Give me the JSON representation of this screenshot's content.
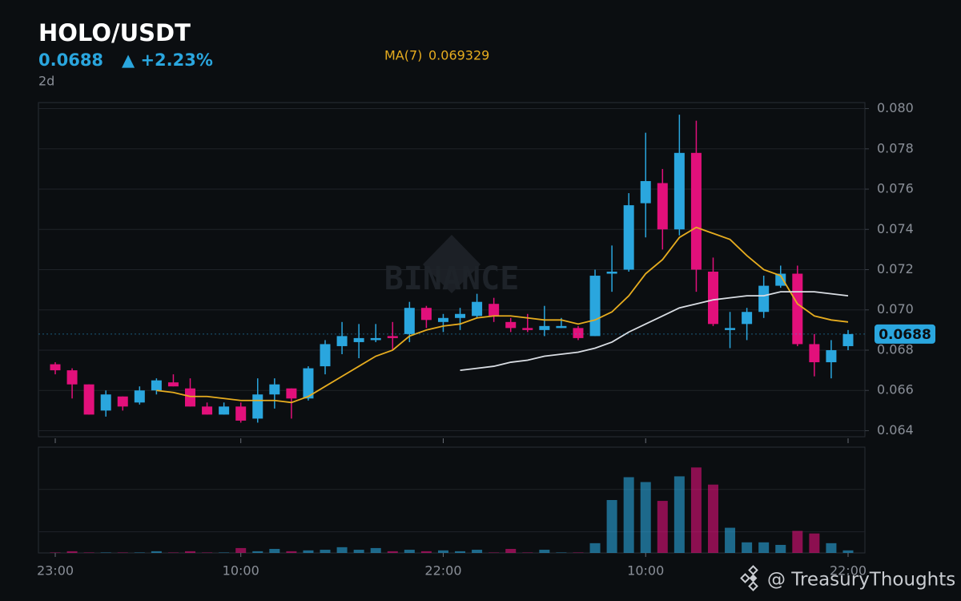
{
  "chart_data": {
    "type": "candlestick",
    "title": "HOLO/USDT",
    "price": 0.0688,
    "change": "▲ +2.23%",
    "timeframe": "2d",
    "watermark": "BINANCE",
    "footer": "@ TreasuryThoughts",
    "categories": [
      "23:00",
      null,
      null,
      null,
      null,
      null,
      null,
      null,
      null,
      null,
      null,
      "10:00",
      null,
      null,
      null,
      null,
      null,
      null,
      null,
      null,
      null,
      null,
      null,
      "22:00",
      null,
      null,
      null,
      null,
      null,
      null,
      null,
      null,
      null,
      null,
      null,
      "10:00",
      null,
      null,
      null,
      null,
      null,
      null,
      null,
      null,
      null,
      null,
      null,
      "22:00"
    ],
    "open": [
      0.0673,
      0.067,
      0.0663,
      0.065,
      0.0657,
      0.0654,
      0.066,
      0.0664,
      0.0661,
      0.0652,
      0.0648,
      0.0652,
      0.0646,
      0.0658,
      0.0661,
      0.0656,
      0.0672,
      0.0682,
      0.0684,
      0.0685,
      0.0687,
      0.0688,
      0.0701,
      0.0694,
      0.0696,
      0.0697,
      0.0703,
      0.0694,
      0.0691,
      0.069,
      0.0691,
      0.0691,
      0.0687,
      0.0718,
      0.072,
      0.0753,
      0.0763,
      0.074,
      0.0778,
      0.0719,
      0.069,
      0.0693,
      0.0699,
      0.0712,
      0.0718,
      0.0683,
      0.0674,
      0.0682
    ],
    "high": [
      0.0674,
      0.0671,
      0.0663,
      0.066,
      0.0657,
      0.0662,
      0.0666,
      0.0668,
      0.0666,
      0.0654,
      0.0654,
      0.0654,
      0.0666,
      0.0666,
      0.0661,
      0.0672,
      0.0685,
      0.0694,
      0.0693,
      0.0693,
      0.0694,
      0.0704,
      0.0702,
      0.0698,
      0.0701,
      0.0708,
      0.0706,
      0.0696,
      0.0698,
      0.0702,
      0.0696,
      0.0692,
      0.072,
      0.0732,
      0.0758,
      0.0788,
      0.077,
      0.0797,
      0.0794,
      0.0726,
      0.0699,
      0.0701,
      0.0717,
      0.0722,
      0.0722,
      0.0688,
      0.0685,
      0.069
    ],
    "low": [
      0.0668,
      0.0656,
      0.0648,
      0.0647,
      0.065,
      0.0653,
      0.0658,
      0.0662,
      0.0652,
      0.0648,
      0.0648,
      0.0644,
      0.0644,
      0.0651,
      0.0646,
      0.0655,
      0.0668,
      0.0678,
      0.0676,
      0.0684,
      0.068,
      0.0684,
      0.0691,
      0.0689,
      0.069,
      0.0696,
      0.0694,
      0.0689,
      0.0689,
      0.0687,
      0.0691,
      0.0685,
      0.0687,
      0.0709,
      0.0719,
      0.0736,
      0.073,
      0.0737,
      0.0709,
      0.0692,
      0.0681,
      0.0685,
      0.0696,
      0.0711,
      0.0682,
      0.0667,
      0.0666,
      0.068
    ],
    "close": [
      0.067,
      0.0663,
      0.0648,
      0.0658,
      0.0652,
      0.066,
      0.0665,
      0.0662,
      0.0652,
      0.0648,
      0.0652,
      0.0645,
      0.0658,
      0.0663,
      0.0656,
      0.0671,
      0.0683,
      0.0687,
      0.0686,
      0.0686,
      0.0686,
      0.0701,
      0.0695,
      0.0696,
      0.0698,
      0.0704,
      0.0697,
      0.0691,
      0.069,
      0.0692,
      0.0692,
      0.0686,
      0.0717,
      0.0719,
      0.0752,
      0.0764,
      0.074,
      0.0778,
      0.072,
      0.0693,
      0.0691,
      0.0699,
      0.0712,
      0.0718,
      0.0683,
      0.0674,
      0.068,
      0.0688
    ],
    "volume": [
      0.02,
      0.08,
      0.02,
      0.02,
      0.02,
      0.02,
      0.08,
      0.02,
      0.08,
      0.02,
      0.02,
      0.23,
      0.08,
      0.19,
      0.08,
      0.12,
      0.15,
      0.27,
      0.15,
      0.23,
      0.08,
      0.15,
      0.08,
      0.12,
      0.08,
      0.15,
      0.02,
      0.19,
      0.02,
      0.15,
      0.02,
      0.02,
      0.46,
      2.5,
      3.58,
      3.35,
      2.46,
      3.62,
      4.04,
      3.23,
      1.19,
      0.5,
      0.5,
      0.38,
      1.04,
      0.92,
      0.46,
      0.12
    ],
    "series": [
      {
        "name": "MA(7)",
        "current": 0.069329,
        "color": "#e6ac1f",
        "values": [
          null,
          null,
          null,
          null,
          null,
          null,
          0.066,
          0.0659,
          0.0657,
          0.0657,
          0.0656,
          0.0655,
          0.0655,
          0.0655,
          0.0654,
          0.0657,
          0.0662,
          0.0667,
          0.0672,
          0.0677,
          0.068,
          0.0687,
          0.069,
          0.0692,
          0.0693,
          0.0696,
          0.0697,
          0.0697,
          0.0696,
          0.0695,
          0.0695,
          0.0693,
          0.0695,
          0.0699,
          0.0707,
          0.0718,
          0.0725,
          0.0736,
          0.0741,
          0.0738,
          0.0735,
          0.0727,
          0.072,
          0.0717,
          0.0703,
          0.0697,
          0.0695,
          0.0694
        ]
      },
      {
        "color": "#d9dde3",
        "values": [
          null,
          null,
          null,
          null,
          null,
          null,
          null,
          null,
          null,
          null,
          null,
          null,
          null,
          null,
          null,
          null,
          null,
          null,
          null,
          null,
          null,
          null,
          null,
          null,
          0.067,
          0.0671,
          0.0672,
          0.0674,
          0.0675,
          0.0677,
          0.0678,
          0.0679,
          0.0681,
          0.0684,
          0.0689,
          0.0693,
          0.0697,
          0.0701,
          0.0703,
          0.0705,
          0.0706,
          0.0707,
          0.0707,
          0.0709,
          0.0709,
          0.0709,
          0.0708,
          0.0707
        ]
      }
    ],
    "up_color": "#2aa6de",
    "down_color": "#e2107b",
    "ylim": [
      0.0637,
      0.0803
    ],
    "yticks": [
      0.064,
      0.066,
      0.068,
      {
        "value": 0.07,
        "label": "0.070"
      },
      0.072,
      0.074,
      0.076,
      0.078,
      {
        "value": 0.08,
        "label": "0.080"
      }
    ],
    "volume_lim": [
      0,
      5
    ],
    "volume_ticks": [
      1,
      3
    ],
    "grid": true,
    "last_price": 0.0688
  }
}
